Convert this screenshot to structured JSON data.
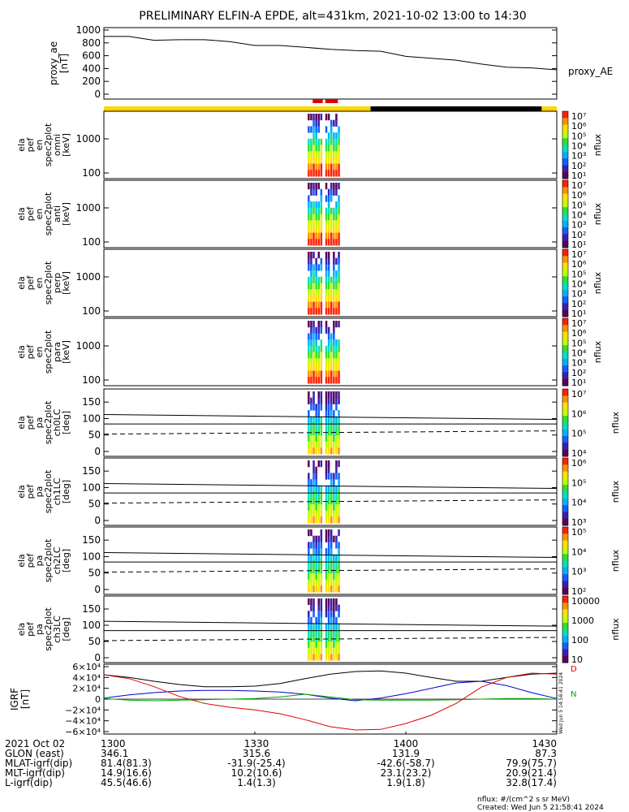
{
  "title": "PRELIMINARY ELFIN-A EPDE, alt=431km, 2021-10-02 13:00 to 14:30",
  "chart_data": [
    {
      "type": "line",
      "name": "proxy_ae",
      "ylabel": [
        "proxy_ae",
        "[nT]"
      ],
      "right_label": "proxy_AE",
      "ylim": [
        0,
        1000
      ],
      "yticks": [
        "1000",
        "800",
        "600",
        "400",
        "200",
        "0"
      ],
      "x": [
        "13:00",
        "13:05",
        "13:10",
        "13:15",
        "13:20",
        "13:25",
        "13:30",
        "13:35",
        "13:40",
        "13:45",
        "13:50",
        "13:55",
        "14:00",
        "14:05",
        "14:10",
        "14:15",
        "14:20",
        "14:25",
        "14:30"
      ],
      "values": [
        900,
        900,
        840,
        850,
        850,
        820,
        760,
        760,
        730,
        700,
        680,
        670,
        590,
        560,
        530,
        470,
        420,
        410,
        380
      ]
    },
    {
      "type": "bar",
      "name": "status-bar",
      "segments": [
        {
          "from": "13:00",
          "to": "13:53",
          "color": "#ffd700"
        },
        {
          "from": "13:53",
          "to": "14:27",
          "color": "#000000"
        },
        {
          "from": "14:27",
          "to": "14:30",
          "color": "#ffd700"
        }
      ],
      "markers": [
        {
          "from": "13:41.5",
          "to": "13:43.5",
          "color": "#e00000"
        },
        {
          "from": "13:44",
          "to": "13:46.5",
          "color": "#e00000"
        }
      ]
    },
    {
      "type": "heatmap",
      "name": "ela_pef_en_spec2plot_omni",
      "ylabel": [
        "ela",
        "pef",
        "en",
        "spec2plot",
        "omni",
        "[keV]"
      ],
      "yticks": [
        "1000",
        "100"
      ],
      "colorbar": {
        "label": "nflux",
        "ticks": [
          "10⁷",
          "10⁶",
          "10⁵",
          "10⁴",
          "10³",
          "10²",
          "10¹"
        ]
      }
    },
    {
      "type": "heatmap",
      "name": "ela_pef_en_spec2plot_anti",
      "ylabel": [
        "ela",
        "pef",
        "en",
        "spec2plot",
        "anti",
        "[keV]"
      ],
      "yticks": [
        "1000",
        "100"
      ],
      "colorbar": {
        "label": "nflux",
        "ticks": [
          "10⁷",
          "10⁶",
          "10⁵",
          "10⁴",
          "10³",
          "10²",
          "10¹"
        ]
      }
    },
    {
      "type": "heatmap",
      "name": "ela_pef_en_spec2plot_perp",
      "ylabel": [
        "ela",
        "pef",
        "en",
        "spec2plot",
        "perp",
        "[keV]"
      ],
      "yticks": [
        "1000",
        "100"
      ],
      "colorbar": {
        "label": "nflux",
        "ticks": [
          "10⁷",
          "10⁶",
          "10⁵",
          "10⁴",
          "10³",
          "10²",
          "10¹"
        ]
      }
    },
    {
      "type": "heatmap",
      "name": "ela_pef_en_spec2plot_para",
      "ylabel": [
        "ela",
        "pef",
        "en",
        "spec2plot",
        "para",
        "[keV]"
      ],
      "yticks": [
        "1000",
        "100"
      ],
      "colorbar": {
        "label": "nflux",
        "ticks": [
          "10⁷",
          "10⁶",
          "10⁵",
          "10⁴",
          "10³",
          "10²",
          "10¹"
        ]
      }
    },
    {
      "type": "heatmap",
      "name": "ela_pef_pa_spec2plot_ch0LC",
      "ylabel": [
        "ela",
        "pef",
        "pa",
        "spec2plot",
        "ch0LC",
        "[deg]"
      ],
      "yticks": [
        "150",
        "100",
        "50",
        "0"
      ],
      "colorbar": {
        "label": "nflux",
        "ticks": [
          "10⁷",
          "10⁶",
          "10⁵",
          "10⁴"
        ]
      }
    },
    {
      "type": "heatmap",
      "name": "ela_pef_pa_spec2plot_ch1LC",
      "ylabel": [
        "ela",
        "pef",
        "pa",
        "spec2plot",
        "ch1LC",
        "[deg]"
      ],
      "yticks": [
        "150",
        "100",
        "50",
        "0"
      ],
      "colorbar": {
        "label": "nflux",
        "ticks": [
          "10⁶",
          "10⁵",
          "10⁴",
          "10³"
        ]
      }
    },
    {
      "type": "heatmap",
      "name": "ela_pef_pa_spec2plot_ch2LC",
      "ylabel": [
        "ela",
        "pef",
        "pa",
        "spec2plot",
        "ch2LC",
        "[deg]"
      ],
      "yticks": [
        "150",
        "100",
        "50",
        "0"
      ],
      "colorbar": {
        "label": "nflux",
        "ticks": [
          "10⁵",
          "10⁴",
          "10³",
          "10²"
        ]
      }
    },
    {
      "type": "heatmap",
      "name": "ela_pef_pa_spec2plot_ch3LC",
      "ylabel": [
        "ela",
        "pef",
        "pa",
        "spec2plot",
        "ch3LC",
        "[deg]"
      ],
      "yticks": [
        "150",
        "100",
        "50",
        "0"
      ],
      "colorbar": {
        "label": "nflux",
        "ticks": [
          "10000",
          "1000",
          "100",
          "10"
        ]
      }
    },
    {
      "type": "line",
      "name": "IGRF",
      "ylabel": [
        "IGRF",
        "[nT]"
      ],
      "ylim": [
        -60000,
        60000
      ],
      "yticks": [
        "6×10⁴",
        "4×10⁴",
        "2×10⁴",
        "0",
        "−2×10⁴",
        "−4×10⁴",
        "−6×10⁴"
      ],
      "x": [
        "13:00",
        "13:05",
        "13:10",
        "13:15",
        "13:20",
        "13:25",
        "13:30",
        "13:35",
        "13:40",
        "13:45",
        "13:50",
        "13:55",
        "14:00",
        "14:05",
        "14:10",
        "14:15",
        "14:20",
        "14:25",
        "14:30"
      ],
      "series": [
        {
          "color": "#000000",
          "values": [
            45000,
            40000,
            33000,
            27000,
            23000,
            23000,
            24000,
            29000,
            38000,
            46000,
            51000,
            52000,
            48000,
            40000,
            33000,
            33000,
            40000,
            46000,
            48000
          ]
        },
        {
          "color": "#0000cc",
          "values": [
            2000,
            8000,
            12000,
            15000,
            16000,
            16000,
            15000,
            13000,
            9000,
            2000,
            -3000,
            2000,
            10000,
            20000,
            30000,
            33000,
            25000,
            12000,
            1000
          ]
        },
        {
          "color": "#00aa00",
          "values": [
            1000,
            -2000,
            -3000,
            -2000,
            -1000,
            0,
            1000,
            4000,
            9000,
            4000,
            -1000,
            -2000,
            -2000,
            -2000,
            -1000,
            0,
            1000,
            1000,
            0
          ]
        },
        {
          "color": "#dd0000",
          "values": [
            45000,
            38000,
            23000,
            5000,
            -8000,
            -15000,
            -20000,
            -27000,
            -38000,
            -51000,
            -57000,
            -56000,
            -45000,
            -30000,
            -8000,
            22000,
            40000,
            48000,
            46000
          ]
        }
      ],
      "side_labels": [
        "D",
        "N"
      ]
    }
  ],
  "xaxis": {
    "rows": [
      {
        "label": "2021 Oct 02",
        "values": [
          "1300",
          "1330",
          "1400",
          "1430"
        ]
      },
      {
        "label": "GLON (east)",
        "values": [
          "346.1",
          "315.6",
          "131.9",
          "87.3"
        ]
      },
      {
        "label": "MLAT-igrf(dip)",
        "values": [
          "81.4(81.3)",
          "-31.9(-25.4)",
          "-42.6(-58.7)",
          "79.9(75.7)"
        ]
      },
      {
        "label": "MLT-igrf(dip)",
        "values": [
          "14.9(16.6)",
          "10.2(10.6)",
          "23.1(23.2)",
          "20.9(21.4)"
        ]
      },
      {
        "label": "L-igrf(dip)",
        "values": [
          "45.5(46.6)",
          "1.4(1.3)",
          "1.9(1.8)",
          "32.8(17.4)"
        ]
      }
    ]
  },
  "footer": {
    "units": "nflux: #/(cm^2 s sr MeV)",
    "created": "Created: Wed Jun  5 21:58:41 2024",
    "stamp": "Wed Jun  5 14:58:41 2024"
  }
}
